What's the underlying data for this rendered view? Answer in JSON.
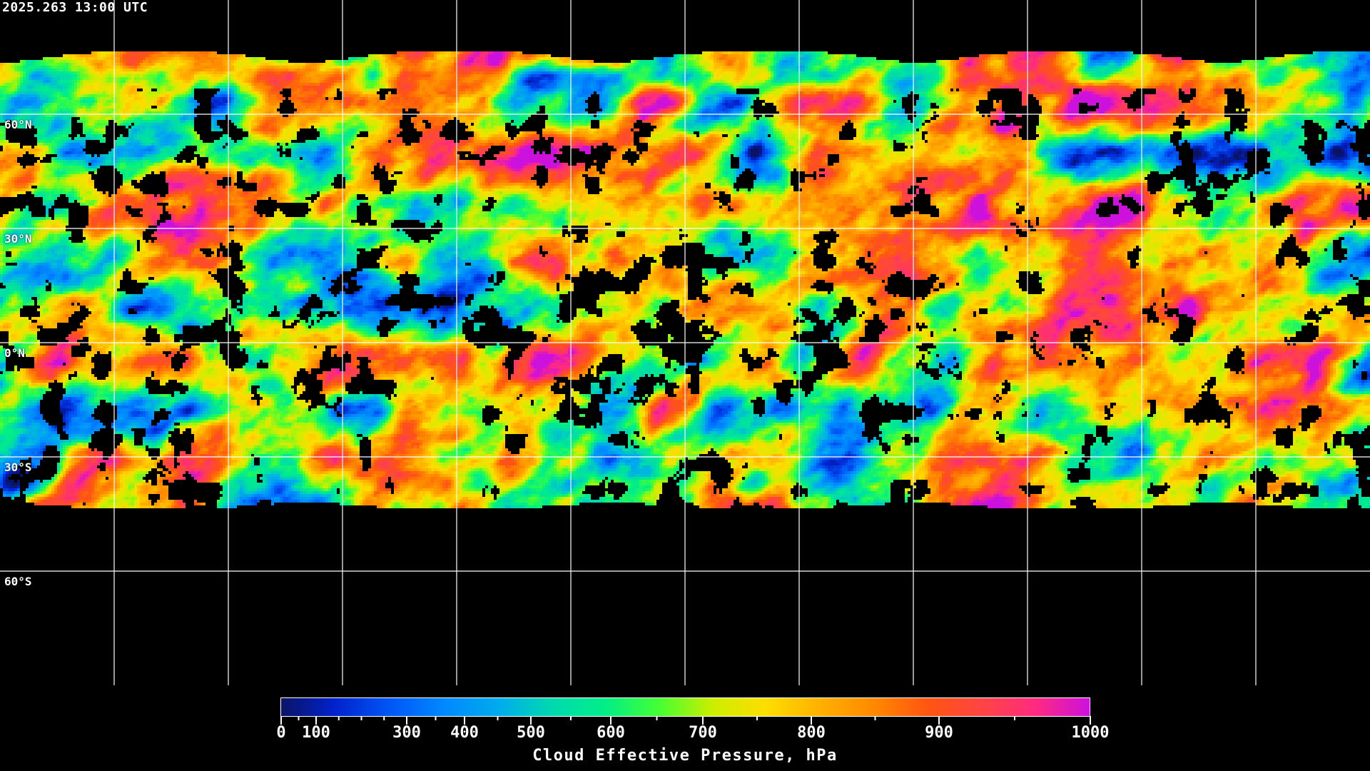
{
  "header": {
    "timestamp": "2025.263 13:00 UTC"
  },
  "map": {
    "projection": "equirectangular",
    "gridlines": true,
    "longitude_step_deg": 30,
    "latitude_labels": [
      "60°N",
      "30°N",
      "0°N",
      "30°S",
      "60°S"
    ],
    "latitudes": [
      60,
      30,
      0,
      -30,
      -60
    ],
    "coastline_color": "#ffffff",
    "clear_sky_color": "#000000"
  },
  "colorbar": {
    "title": "Cloud Effective Pressure, hPa",
    "range": [
      0,
      1000
    ],
    "major_ticks": [
      "0",
      "100",
      "300",
      "400",
      "500",
      "600",
      "700",
      "800",
      "900",
      "1000"
    ],
    "minor_ticks": [
      50,
      150,
      200,
      250,
      350,
      450,
      550,
      650,
      750,
      850,
      950
    ],
    "colors": [
      "#0a1466",
      "#0022cc",
      "#0055f5",
      "#0088ff",
      "#00aaee",
      "#00d8b0",
      "#00ee88",
      "#44ff33",
      "#ccee00",
      "#ffdd00",
      "#ffb000",
      "#ff8800",
      "#ff5511",
      "#ff4444",
      "#ff2a80",
      "#cc11dd"
    ]
  }
}
